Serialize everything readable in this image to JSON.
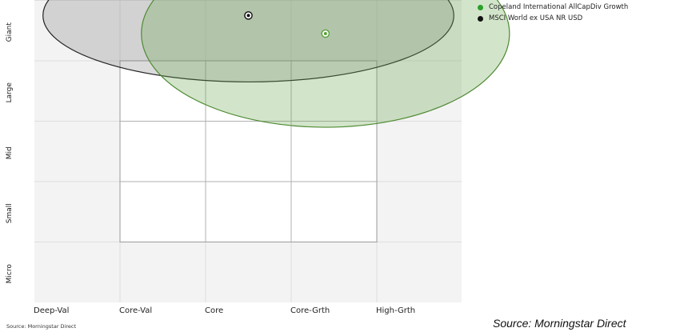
{
  "chart_data": {
    "type": "scatter",
    "subtype": "style-box-holdings-ellipse",
    "x_categories": [
      "Deep-Val",
      "Core-Val",
      "Core",
      "Core-Grth",
      "High-Grth"
    ],
    "y_categories": [
      "Micro",
      "Small",
      "Mid",
      "Large",
      "Giant"
    ],
    "grid": true,
    "legend_position": "top-right",
    "series": [
      {
        "name": "Copeland International AllCapDiv Growth",
        "color": "#6aa84f",
        "centroid": {
          "x": 3.4,
          "y": 4.45
        },
        "ellipse_semi_axis": {
          "x": 2.15,
          "y": 1.55
        },
        "fill_opacity": 0.3
      },
      {
        "name": "MSCI World ex USA NR USD",
        "color": "#111111",
        "centroid": {
          "x": 2.5,
          "y": 4.75
        },
        "ellipse_semi_axis": {
          "x": 2.4,
          "y": 1.1
        },
        "fill_opacity": 0.25
      }
    ],
    "style_box": {
      "x_range": [
        1,
        4
      ],
      "y_range": [
        1,
        4
      ]
    }
  },
  "source_note_small": "Source: Morningstar Direct",
  "source_note_large": "Source:  Morningstar Direct"
}
